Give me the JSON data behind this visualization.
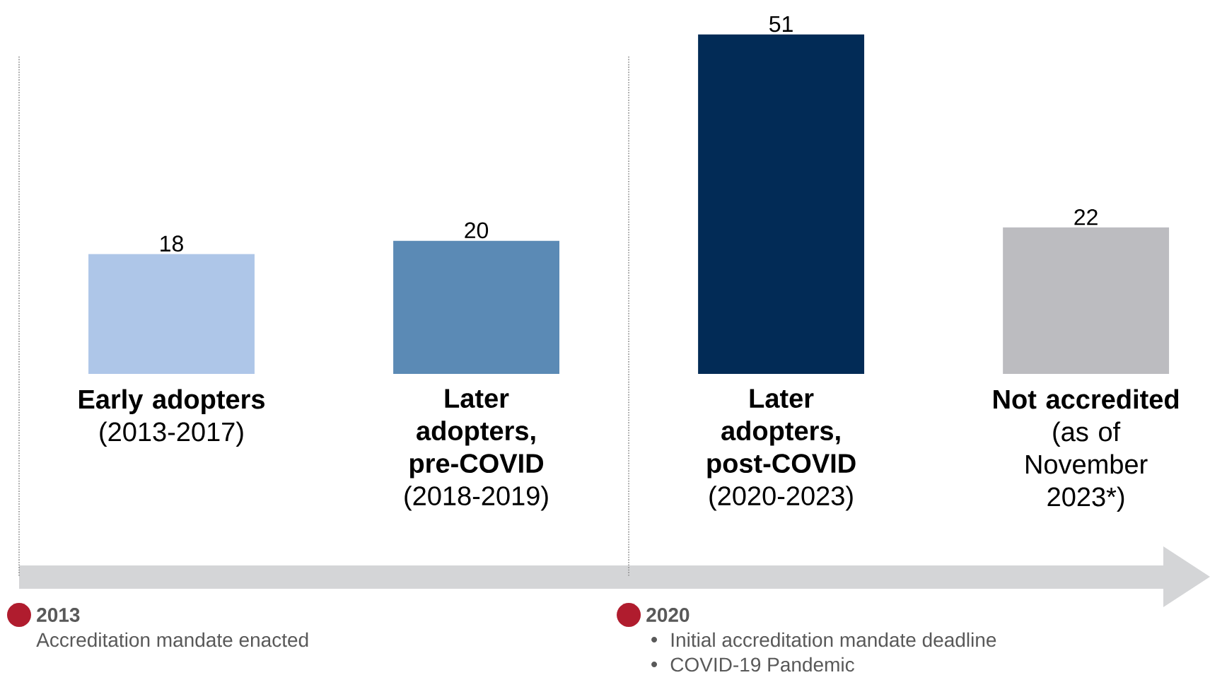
{
  "chart_data": {
    "type": "bar",
    "categories": [
      "**Early adopters** (2013-2017)",
      "**Later adopters, pre-COVID** (2018-2019)",
      "**Later adopters, post-COVID** (2020-2023)",
      "**Not accredited** (as of November 2023*)"
    ],
    "values": [
      18,
      20,
      51,
      22
    ],
    "colors": [
      "#aec6e8",
      "#5b8ab5",
      "#022b56",
      "#bcbcc0"
    ],
    "data_labels": true,
    "annotations": [
      "**2013**",
      "Accreditation mandate enacted",
      "**2020**",
      "Initial accreditation mandate deadline",
      "COVID-19 Pandemic"
    ]
  }
}
